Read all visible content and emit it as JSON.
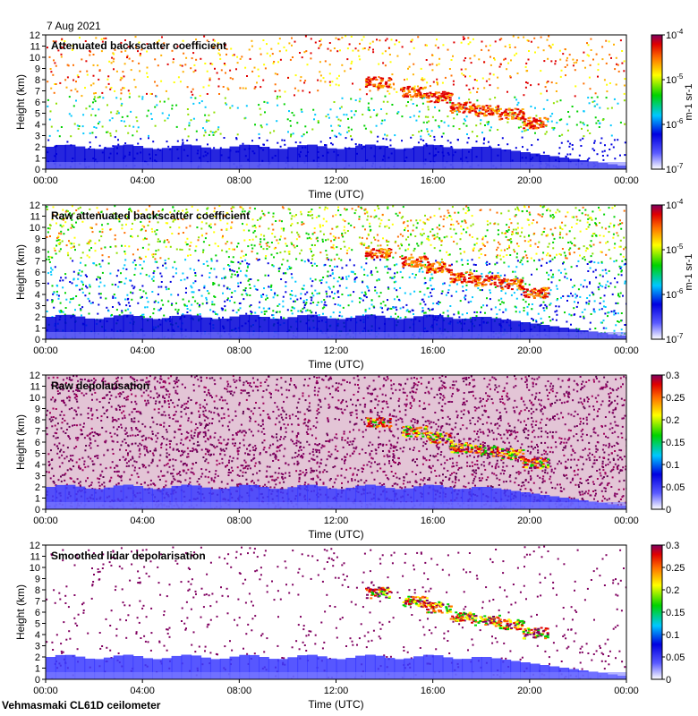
{
  "date_label": "7 Aug 2021",
  "footer": "Vehmasmaki CL61D ceilometer",
  "chart_data": [
    {
      "type": "heatmap",
      "title": "Attenuated backscatter coefficient",
      "xlabel": "Time (UTC)",
      "ylabel": "Height (km)",
      "x_ticks": [
        "00:00",
        "04:00",
        "08:00",
        "12:00",
        "16:00",
        "20:00",
        "00:00"
      ],
      "y_ticks": [
        "0",
        "1",
        "2",
        "3",
        "4",
        "5",
        "6",
        "7",
        "8",
        "9",
        "10",
        "11",
        "12"
      ],
      "ylim": [
        0,
        12
      ],
      "colorbar": {
        "scale": "log",
        "range": [
          1e-07,
          0.0001
        ],
        "tick_labels": [
          "10^-4",
          "10^-5",
          "10^-6",
          "10^-7"
        ],
        "unit": "m-1 sr-1"
      }
    },
    {
      "type": "heatmap",
      "title": "Raw attenuated backscatter coefficient",
      "xlabel": "Time (UTC)",
      "ylabel": "Height (km)",
      "x_ticks": [
        "00:00",
        "04:00",
        "08:00",
        "12:00",
        "16:00",
        "20:00",
        "00:00"
      ],
      "y_ticks": [
        "0",
        "1",
        "2",
        "3",
        "4",
        "5",
        "6",
        "7",
        "8",
        "9",
        "10",
        "11",
        "12"
      ],
      "ylim": [
        0,
        12
      ],
      "colorbar": {
        "scale": "log",
        "range": [
          1e-07,
          0.0001
        ],
        "tick_labels": [
          "10^-4",
          "10^-5",
          "10^-6",
          "10^-7"
        ],
        "unit": "m-1 sr-1"
      }
    },
    {
      "type": "heatmap",
      "title": "Raw depolarisation",
      "xlabel": "Time (UTC)",
      "ylabel": "Height (km)",
      "x_ticks": [
        "00:00",
        "04:00",
        "08:00",
        "12:00",
        "16:00",
        "20:00",
        "00:00"
      ],
      "y_ticks": [
        "0",
        "1",
        "2",
        "3",
        "4",
        "5",
        "6",
        "7",
        "8",
        "9",
        "10",
        "11",
        "12"
      ],
      "ylim": [
        0,
        12
      ],
      "colorbar": {
        "scale": "linear",
        "range": [
          0,
          0.3
        ],
        "tick_labels": [
          "0.3",
          "0.25",
          "0.2",
          "0.15",
          "0.1",
          "0.05",
          "0"
        ]
      }
    },
    {
      "type": "heatmap",
      "title": "Smoothed lidar depolarisation",
      "xlabel": "Time (UTC)",
      "ylabel": "Height (km)",
      "x_ticks": [
        "00:00",
        "04:00",
        "08:00",
        "12:00",
        "16:00",
        "20:00",
        "00:00"
      ],
      "y_ticks": [
        "0",
        "1",
        "2",
        "3",
        "4",
        "5",
        "6",
        "7",
        "8",
        "9",
        "10",
        "11",
        "12"
      ],
      "ylim": [
        0,
        12
      ],
      "colorbar": {
        "scale": "linear",
        "range": [
          0,
          0.3
        ],
        "tick_labels": [
          "0.3",
          "0.25",
          "0.2",
          "0.15",
          "0.1",
          "0.05",
          "0"
        ]
      }
    }
  ]
}
